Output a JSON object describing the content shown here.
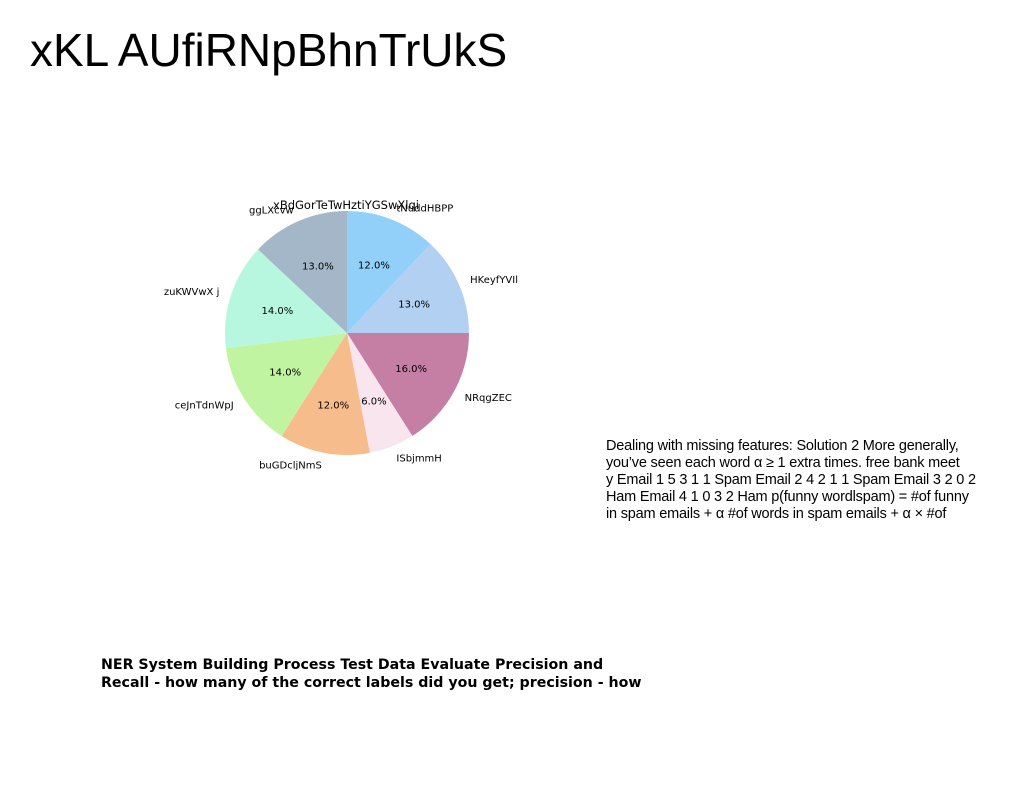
{
  "page": {
    "title": "xKL AUfiRNpBhnTrUkS"
  },
  "chart_data": {
    "type": "pie",
    "title": "xBdGorTeTwHztiYGSwXlqi",
    "start_angle_deg": 90,
    "direction": "clockwise",
    "slices": [
      {
        "label": "tNuddHBPP",
        "value": 12.0,
        "pct_label": "12.0%",
        "color": "#92d0fa"
      },
      {
        "label": "HKeyfYVIl",
        "value": 13.0,
        "pct_label": "13.0%",
        "color": "#b1d0f2"
      },
      {
        "label": "NRqgZEC",
        "value": 16.0,
        "pct_label": "16.0%",
        "color": "#c57fa5"
      },
      {
        "label": "ISbjmmH",
        "value": 6.0,
        "pct_label": "6.0%",
        "color": "#f8e5ee"
      },
      {
        "label": "buGDcljNmS",
        "value": 12.0,
        "pct_label": "12.0%",
        "color": "#f7bc8b"
      },
      {
        "label": "ceJnTdnWpJ",
        "value": 14.0,
        "pct_label": "14.0%",
        "color": "#c0f4a1"
      },
      {
        "label": "zuKWVwX j",
        "value": 14.0,
        "pct_label": "14.0%",
        "color": "#b7f7df"
      },
      {
        "label": "ggLXcvw",
        "value": 13.0,
        "pct_label": "13.0%",
        "color": "#a4b7c9"
      }
    ]
  },
  "right_text": {
    "lines": [
      "Dealing with missing features: Solution 2 More generally,",
      "you’ve seen each word α ≥ 1 extra times. free bank meet",
      "y Email 1 5 3 1 1 Spam Email 2 4 2 1 1 Spam Email 3 2 0 2",
      "Ham Email 4 1 0 3 2 Ham p(funny wordlspam) = #of funny",
      "in spam emails + α #of words in spam emails + α × #of"
    ]
  },
  "bottom_text": {
    "lines": [
      "NER System Building Process Test Data Evaluate Precision and",
      "Recall - how many of the correct labels did you get; precision - how"
    ]
  }
}
